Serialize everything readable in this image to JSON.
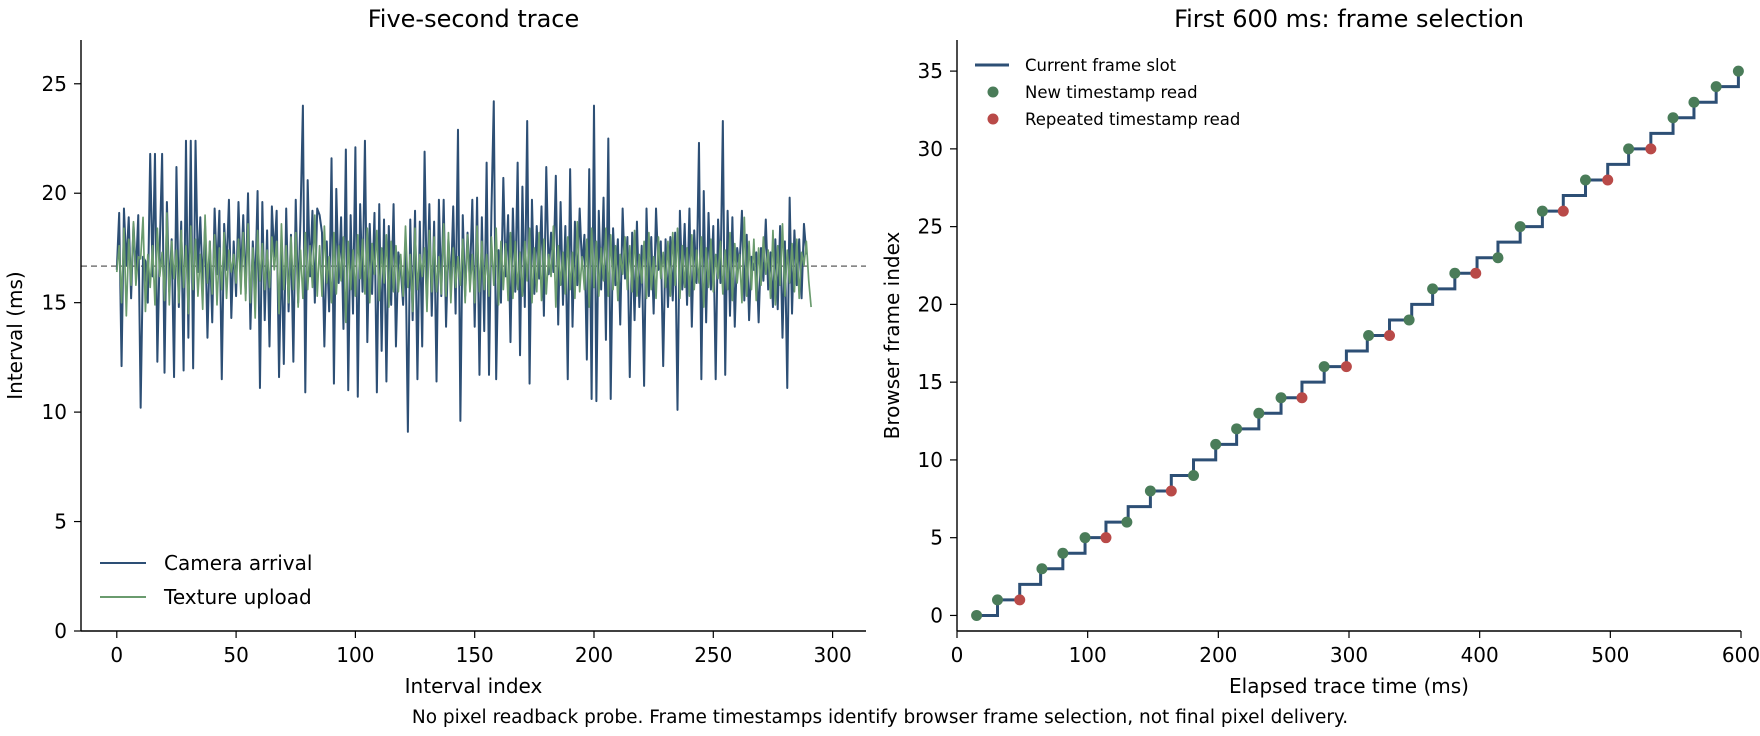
{
  "footnote": "No pixel readback probe. Frame timestamps identify browser frame selection, not final pixel delivery.",
  "colors": {
    "camera": "#2d4f75",
    "texture": "#6a9b6e",
    "step": "#2d4f75",
    "new_read": "#4a7c59",
    "repeat_read": "#b94a48",
    "reference": "#777777"
  },
  "chart_data": [
    {
      "type": "line",
      "title": "Five-second trace",
      "xlabel": "Interval index",
      "ylabel": "Interval (ms)",
      "xlim": [
        -15,
        314
      ],
      "ylim": [
        0,
        27
      ],
      "xticks": [
        0,
        50,
        100,
        150,
        200,
        250,
        300
      ],
      "yticks": [
        0,
        5,
        10,
        15,
        20,
        25
      ],
      "reference_line": 16.67,
      "legend_position": "lower-left",
      "series": [
        {
          "name": "Camera arrival",
          "values": [
            16.5,
            19.1,
            12.1,
            19.3,
            16.7,
            18.9,
            15.2,
            18.6,
            16.3,
            19.0,
            10.2,
            17.1,
            16.9,
            15.0,
            21.8,
            16.2,
            21.8,
            12.3,
            17.5,
            21.8,
            11.8,
            19.6,
            15.5,
            17.9,
            11.6,
            21.2,
            14.8,
            18.7,
            11.9,
            22.4,
            13.4,
            22.4,
            12.0,
            22.4,
            16.4,
            18.9,
            15.7,
            18.5,
            13.4,
            17.8,
            14.1,
            19.3,
            16.3,
            19.2,
            11.5,
            18.6,
            16.5,
            19.7,
            14.3,
            17.8,
            15.3,
            19.6,
            16.1,
            19.0,
            15.4,
            20.0,
            13.8,
            17.8,
            15.6,
            20.1,
            11.1,
            19.6,
            14.2,
            18.3,
            13.0,
            19.4,
            17.1,
            19.2,
            11.6,
            17.6,
            12.2,
            19.3,
            14.6,
            18.1,
            12.3,
            19.7,
            15.0,
            18.9,
            24.0,
            10.9,
            20.6,
            16.2,
            19.2,
            15.0,
            19.3,
            19.0,
            18.2,
            13.0,
            17.8,
            14.6,
            21.6,
            11.3,
            20.2,
            15.9,
            18.9,
            13.8,
            22.0,
            11.0,
            19.0,
            14.5,
            22.1,
            10.7,
            19.5,
            15.5,
            22.4,
            13.2,
            18.6,
            15.4,
            19.1,
            10.9,
            19.5,
            12.8,
            18.8,
            11.4,
            18.5,
            14.9,
            19.5,
            13.0,
            17.3,
            16.6,
            14.9,
            17.5,
            9.1,
            18.8,
            14.2,
            19.2,
            11.5,
            18.7,
            13.0,
            21.9,
            15.1,
            19.5,
            14.4,
            18.7,
            11.4,
            19.7,
            15.3,
            19.7,
            13.9,
            17.9,
            15.7,
            19.4,
            14.5,
            22.9,
            9.6,
            19.0,
            15.3,
            18.2,
            16.0,
            19.7,
            13.9,
            19.8,
            11.7,
            18.9,
            13.7,
            21.4,
            11.7,
            19.1,
            24.2,
            11.5,
            17.4,
            15.0,
            20.7,
            16.2,
            19.0,
            13.2,
            19.3,
            15.5,
            21.4,
            12.6,
            20.3,
            14.8,
            23.3,
            11.3,
            19.7,
            15.4,
            18.5,
            16.1,
            19.4,
            14.4,
            21.2,
            16.3,
            18.2,
            16.4,
            20.8,
            14.0,
            19.6,
            14.9,
            18.5,
            11.5,
            21.1,
            13.9,
            18.7,
            15.8,
            19.3,
            16.6,
            18.1,
            12.4,
            21.1,
            10.6,
            24.0,
            10.5,
            19.2,
            15.6,
            19.8,
            13.3,
            22.5,
            10.6,
            18.4,
            15.8,
            17.9,
            14.0,
            19.3,
            16.1,
            18.0,
            11.6,
            18.2,
            14.2,
            18.7,
            14.8,
            17.6,
            11.2,
            19.3,
            15.3,
            18.0,
            14.5,
            19.3,
            16.5,
            17.8,
            12.1,
            17.9,
            14.8,
            18.0,
            15.1,
            18.2,
            10.1,
            19.2,
            15.6,
            18.6,
            14.9,
            19.3,
            13.9,
            18.3,
            15.9,
            22.3,
            11.5,
            20.1,
            14.1,
            19.1,
            15.6,
            18.5,
            11.5,
            18.8,
            15.9,
            23.3,
            11.7,
            19.2,
            14.4,
            18.9,
            13.9,
            17.5,
            16.6,
            19.2,
            15.1,
            18.1,
            14.2,
            17.1,
            16.5,
            17.3,
            14.1,
            17.5,
            16.0,
            18.8,
            15.6,
            17.3,
            14.8,
            17.9,
            14.7,
            18.5,
            13.4,
            17.8,
            11.1,
            19.8,
            14.5,
            18.3,
            15.8,
            17.9,
            15.2,
            18.6,
            17.2
          ]
        },
        {
          "name": "Texture upload",
          "values": [
            16.4,
            17.6,
            15.0,
            18.4,
            14.4,
            17.9,
            15.8,
            18.7,
            15.8,
            17.1,
            17.0,
            18.9,
            14.6,
            17.2,
            15.7,
            17.6,
            14.9,
            18.4,
            16.2,
            17.3,
            15.1,
            19.1,
            14.9,
            17.8,
            16.1,
            17.4,
            15.0,
            18.3,
            15.7,
            17.6,
            14.5,
            18.5,
            15.6,
            17.9,
            15.3,
            17.2,
            14.7,
            19.0,
            15.9,
            17.8,
            15.4,
            18.1,
            14.9,
            17.5,
            15.6,
            18.2,
            15.2,
            17.4,
            16.4,
            17.2,
            15.9,
            17.9,
            15.4,
            18.2,
            15.1,
            18.6,
            15.0,
            17.5,
            14.3,
            18.3,
            16.0,
            17.7,
            15.6,
            17.4,
            15.7,
            18.0,
            16.5,
            17.8,
            14.5,
            18.6,
            15.6,
            17.6,
            15.0,
            18.0,
            15.6,
            18.2,
            14.8,
            17.4,
            15.2,
            18.2,
            15.6,
            17.6,
            15.7,
            19.0,
            15.3,
            17.6,
            15.3,
            18.5,
            15.9,
            17.1,
            15.0,
            18.2,
            15.4,
            17.6,
            16.0,
            18.0,
            14.1,
            17.8,
            15.6,
            17.4,
            15.3,
            18.1,
            16.1,
            17.9,
            15.4,
            18.4,
            15.0,
            17.7,
            16.3,
            18.3,
            15.1,
            17.5,
            15.9,
            18.1,
            14.8,
            17.8,
            15.5,
            17.6,
            15.5,
            17.2,
            15.3,
            18.5,
            15.7,
            17.2,
            14.6,
            18.4,
            15.6,
            17.2,
            16.2,
            17.5,
            14.6,
            18.3,
            15.5,
            18.0,
            15.5,
            17.1,
            15.4,
            18.6,
            15.3,
            18.2,
            15.0,
            17.5,
            15.7,
            17.1,
            15.8,
            17.9,
            15.0,
            18.1,
            15.5,
            17.2,
            15.0,
            18.5,
            15.5,
            17.8,
            15.6,
            17.2,
            15.3,
            18.0,
            15.8,
            18.4,
            14.9,
            17.8,
            15.6,
            17.7,
            15.1,
            18.2,
            15.2,
            17.8,
            15.6,
            17.3,
            15.3,
            17.8,
            16.0,
            18.4,
            15.0,
            17.5,
            15.5,
            18.2,
            15.1,
            17.9,
            15.4,
            17.2,
            16.2,
            18.5,
            14.8,
            17.6,
            15.8,
            17.3,
            15.4,
            18.0,
            15.6,
            17.3,
            15.2,
            18.7,
            15.5,
            17.1,
            15.6,
            17.9,
            14.8,
            18.4,
            15.7,
            17.8,
            15.3,
            17.5,
            16.0,
            18.4,
            15.3,
            18.1,
            15.6,
            17.6,
            15.1,
            17.2,
            16.3,
            18.0,
            15.6,
            17.6,
            15.5,
            18.3,
            15.3,
            17.2,
            15.9,
            17.8,
            15.2,
            18.2,
            15.6,
            17.1,
            15.2,
            18.0,
            16.1,
            17.3,
            15.7,
            17.8,
            15.3,
            18.2,
            15.8,
            18.4,
            15.2,
            17.6,
            15.7,
            17.5,
            15.3,
            18.1,
            15.6,
            17.4,
            15.9,
            18.0,
            14.8,
            17.5,
            15.7,
            17.9,
            15.5,
            17.2,
            16.1,
            17.8,
            15.4,
            17.4,
            15.6,
            18.2,
            15.1,
            17.7,
            15.9,
            17.2,
            15.0,
            18.9,
            15.3,
            17.8,
            15.6,
            17.9,
            15.1,
            17.5,
            15.8,
            18.0,
            16.3,
            17.4,
            15.2,
            18.3,
            14.9,
            17.6,
            15.8,
            18.6,
            15.3,
            17.4,
            15.9,
            17.7,
            15.5,
            17.9,
            15.2,
            17.3,
            16.7,
            17.8,
            16.0,
            14.8
          ]
        }
      ]
    },
    {
      "type": "step+scatter",
      "title": "First 600 ms: frame selection",
      "xlabel": "Elapsed trace time (ms)",
      "ylabel": "Browser frame index",
      "xlim": [
        0,
        600
      ],
      "ylim": [
        -1,
        37
      ],
      "xticks": [
        0,
        100,
        200,
        300,
        400,
        500,
        600
      ],
      "yticks": [
        0,
        5,
        10,
        15,
        20,
        25,
        30,
        35
      ],
      "legend_position": "upper-left",
      "series": [
        {
          "name": "Current frame slot",
          "kind": "step",
          "x": [
            15,
            31,
            48,
            64,
            81,
            98,
            114,
            131,
            148,
            164,
            181,
            198,
            214,
            231,
            248,
            264,
            281,
            298,
            314,
            331,
            348,
            364,
            381,
            398,
            414,
            431,
            448,
            464,
            481,
            498,
            514,
            531,
            548,
            564,
            581,
            598,
            600
          ],
          "y": [
            0,
            1,
            2,
            3,
            4,
            5,
            6,
            7,
            8,
            9,
            10,
            11,
            12,
            13,
            14,
            15,
            16,
            17,
            18,
            19,
            20,
            21,
            22,
            23,
            24,
            25,
            26,
            27,
            28,
            29,
            30,
            31,
            32,
            33,
            34,
            35,
            35
          ]
        },
        {
          "name": "New timestamp read",
          "kind": "points",
          "x": [
            15,
            31,
            65,
            81,
            98,
            130,
            148,
            181,
            198,
            214,
            231,
            248,
            281,
            315,
            346,
            364,
            381,
            414,
            431,
            448,
            481,
            514,
            548,
            564,
            581,
            598
          ],
          "y": [
            0,
            1,
            3,
            4,
            5,
            6,
            8,
            9,
            11,
            12,
            13,
            14,
            16,
            18,
            19,
            21,
            22,
            23,
            25,
            26,
            28,
            30,
            32,
            33,
            34,
            35
          ]
        },
        {
          "name": "Repeated timestamp read",
          "kind": "points",
          "x": [
            48,
            114,
            164,
            264,
            298,
            331,
            397,
            464,
            498,
            531
          ],
          "y": [
            1,
            5,
            8,
            14,
            16,
            18,
            22,
            26,
            28,
            30
          ]
        }
      ]
    }
  ]
}
